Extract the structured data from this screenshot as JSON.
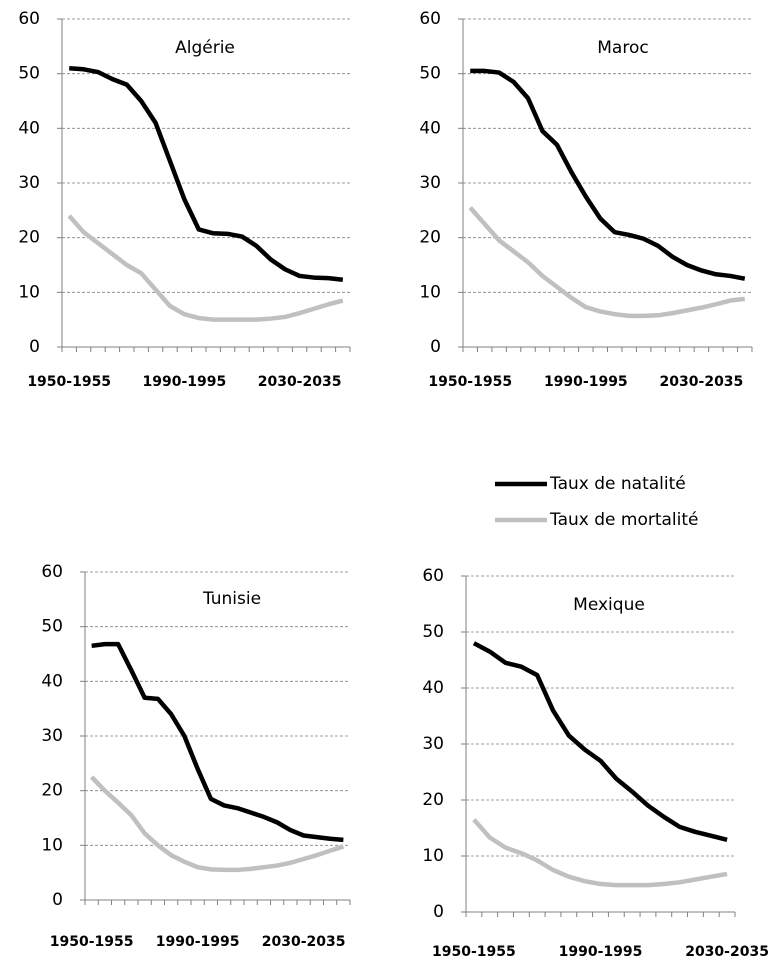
{
  "chart_data": [
    {
      "type": "line",
      "title": "Algérie",
      "categories": [
        "1950-1955",
        null,
        null,
        null,
        null,
        null,
        null,
        null,
        "1990-1995",
        null,
        null,
        null,
        null,
        null,
        null,
        null,
        "2030-2035",
        null,
        null,
        null
      ],
      "series": [
        {
          "name": "Taux de natalité",
          "color": "#000000",
          "values": [
            51,
            50.8,
            50.3,
            49,
            48,
            45,
            41,
            34,
            27,
            21.5,
            20.8,
            20.7,
            20.2,
            18.5,
            16,
            14.2,
            13,
            12.7,
            12.6,
            12.3
          ]
        },
        {
          "name": "Taux de mortalité",
          "color": "#c0c0c0",
          "values": [
            24,
            21,
            19,
            17,
            15,
            13.5,
            10.5,
            7.5,
            6,
            5.3,
            5,
            5,
            5,
            5,
            5.2,
            5.5,
            6.2,
            7,
            7.8,
            8.5
          ]
        }
      ],
      "ylim": [
        0,
        60
      ],
      "yticks": [
        0,
        10,
        20,
        30,
        40,
        50,
        60
      ],
      "grid": true
    },
    {
      "type": "line",
      "title": "Maroc",
      "categories": [
        "1950-1955",
        null,
        null,
        null,
        null,
        null,
        null,
        null,
        "1990-1995",
        null,
        null,
        null,
        null,
        null,
        null,
        null,
        "2030-2035",
        null,
        null,
        null
      ],
      "series": [
        {
          "color": "#000000",
          "values": [
            50.5,
            50.5,
            50.2,
            48.5,
            45.5,
            39.5,
            37,
            32,
            27.5,
            23.5,
            21,
            20.5,
            19.8,
            18.5,
            16.5,
            15,
            14,
            13.3,
            13,
            12.5
          ]
        },
        {
          "color": "#c0c0c0",
          "values": [
            25.5,
            22.5,
            19.5,
            17.5,
            15.5,
            13,
            11,
            9,
            7.3,
            6.5,
            6,
            5.7,
            5.7,
            5.8,
            6.2,
            6.7,
            7.2,
            7.8,
            8.5,
            8.8
          ]
        }
      ],
      "ylim": [
        0,
        60
      ],
      "yticks": [
        0,
        10,
        20,
        30,
        40,
        50,
        60
      ],
      "grid": true
    },
    {
      "type": "line",
      "title": "Tunisie",
      "categories": [
        "1950-1955",
        null,
        null,
        null,
        null,
        null,
        null,
        null,
        "1990-1995",
        null,
        null,
        null,
        null,
        null,
        null,
        null,
        "2030-2035",
        null,
        null,
        null
      ],
      "series": [
        {
          "color": "#000000",
          "values": [
            46.5,
            46.8,
            46.8,
            42,
            37,
            36.8,
            34,
            30,
            24,
            18.5,
            17.3,
            16.8,
            16,
            15.2,
            14.2,
            12.8,
            11.8,
            11.5,
            11.2,
            11
          ]
        },
        {
          "color": "#c0c0c0",
          "values": [
            22.5,
            20,
            17.8,
            15.5,
            12.2,
            10,
            8.2,
            7,
            6,
            5.6,
            5.5,
            5.5,
            5.7,
            6,
            6.3,
            6.8,
            7.5,
            8.2,
            9,
            9.8
          ]
        }
      ],
      "ylim": [
        0,
        60
      ],
      "yticks": [
        0,
        10,
        20,
        30,
        40,
        50,
        60
      ],
      "grid": true
    },
    {
      "type": "line",
      "title": "Mexique",
      "categories": [
        "1950-1955",
        null,
        null,
        null,
        null,
        null,
        null,
        null,
        "1990-1995",
        null,
        null,
        null,
        null,
        null,
        null,
        null,
        "2030-2035"
      ],
      "series": [
        {
          "color": "#000000",
          "values": [
            48,
            46.5,
            44.5,
            43.8,
            42.3,
            36,
            31.5,
            29,
            27,
            23.8,
            21.5,
            19,
            17,
            15.2,
            14.3,
            13.6,
            12.9
          ]
        },
        {
          "color": "#c0c0c0",
          "values": [
            16.5,
            13.3,
            11.5,
            10.5,
            9.2,
            7.5,
            6.3,
            5.5,
            5,
            4.8,
            4.8,
            4.8,
            5,
            5.3,
            5.8,
            6.3,
            6.8
          ]
        }
      ],
      "ylim": [
        0,
        60
      ],
      "yticks": [
        0,
        10,
        20,
        30,
        40,
        50,
        60
      ],
      "grid": true
    }
  ]
}
